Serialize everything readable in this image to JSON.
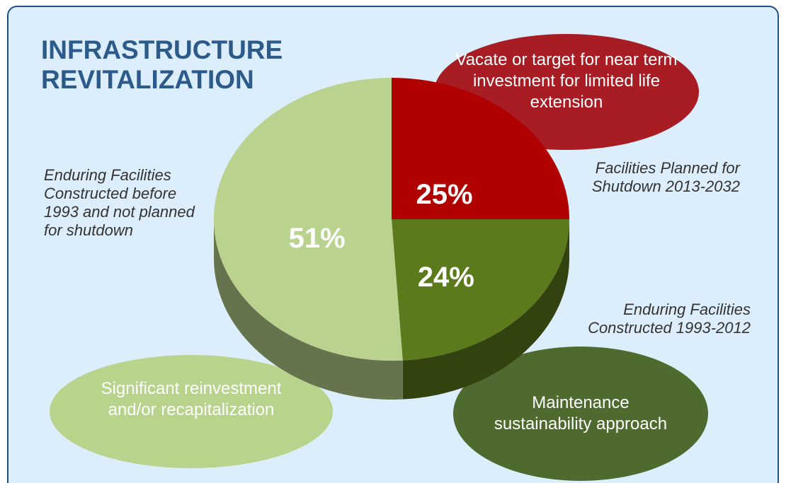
{
  "chart_data": {
    "type": "pie",
    "title": "INFRASTRUCTURE REVITALIZATION",
    "categories": [
      "Facilities Planned for Shutdown 2013-2032",
      "Enduring Facilities Constructed 1993-2012",
      "Enduring Facilities Constructed before 1993 and not planned for shutdown"
    ],
    "values": [
      25,
      24,
      51
    ],
    "value_labels": [
      "25%",
      "24%",
      "51%"
    ],
    "colors": [
      "#b00000",
      "#5b7a1c",
      "#b9d28e"
    ],
    "annotations": [
      "Vacate or target for near term investment for limited life extension",
      "Maintenance sustainability approach",
      "Significant reinvestment and/or recapitalization"
    ]
  }
}
